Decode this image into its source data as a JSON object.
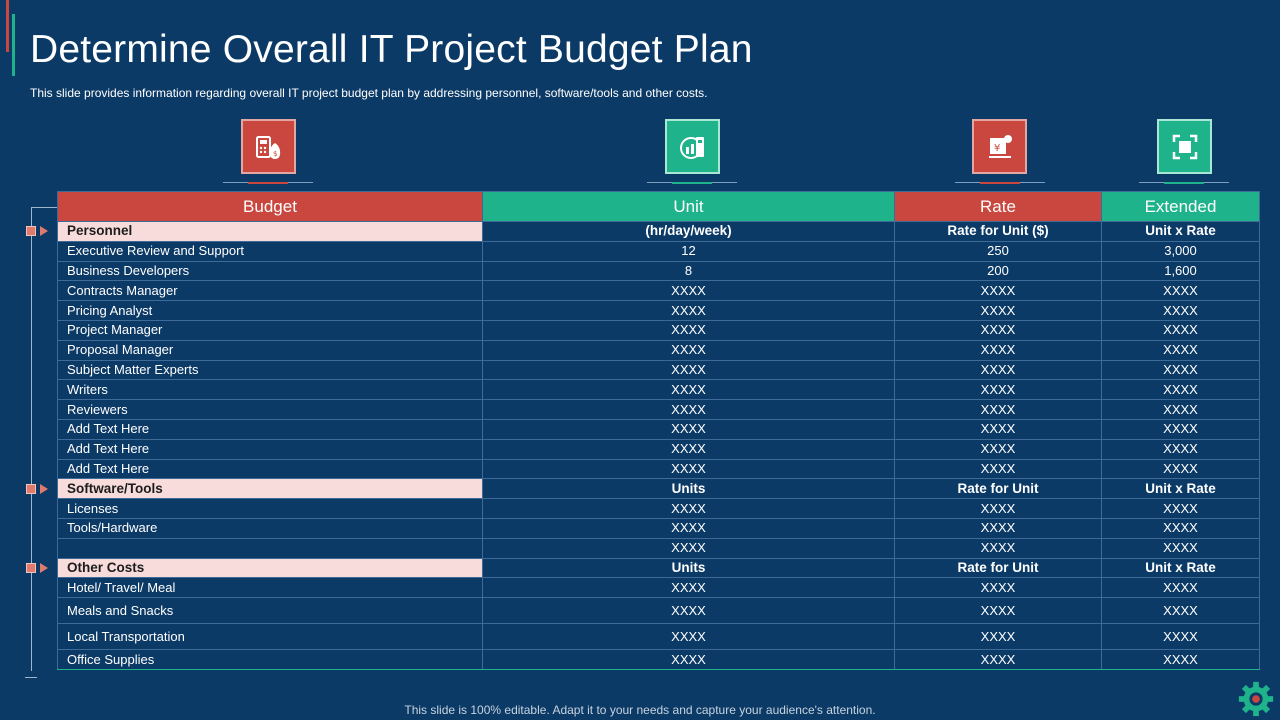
{
  "title": "Determine Overall IT Project Budget Plan",
  "subtitle": "This slide provides information regarding overall IT project budget plan by addressing personnel, software/tools and other costs.",
  "icons": [
    {
      "name": "budget-calculator-icon"
    },
    {
      "name": "growth-chart-icon"
    },
    {
      "name": "rate-price-tag-icon"
    },
    {
      "name": "expand-frame-icon"
    }
  ],
  "table": {
    "headers": [
      "Budget",
      "Unit",
      "Rate",
      "Extended"
    ],
    "sections": [
      {
        "title": "Personnel",
        "unit_header": "(hr/day/week)",
        "rate_header": "Rate for Unit ($)",
        "extended_header": "Unit x Rate",
        "rows": [
          [
            "Executive Review  and Support",
            "12",
            "250",
            "3,000"
          ],
          [
            "Business Developers",
            "8",
            "200",
            "1,600"
          ],
          [
            "Contracts Manager",
            "XXXX",
            "XXXX",
            "XXXX"
          ],
          [
            "Pricing Analyst",
            "XXXX",
            "XXXX",
            "XXXX"
          ],
          [
            "Project Manager",
            "XXXX",
            "XXXX",
            "XXXX"
          ],
          [
            "Proposal Manager",
            "XXXX",
            "XXXX",
            "XXXX"
          ],
          [
            "Subject Matter Experts",
            "XXXX",
            "XXXX",
            "XXXX"
          ],
          [
            "Writers",
            "XXXX",
            "XXXX",
            "XXXX"
          ],
          [
            "Reviewers",
            "XXXX",
            "XXXX",
            "XXXX"
          ],
          [
            "Add Text Here",
            "XXXX",
            "XXXX",
            "XXXX"
          ],
          [
            "Add Text Here",
            "XXXX",
            "XXXX",
            "XXXX"
          ],
          [
            "Add Text Here",
            "XXXX",
            "XXXX",
            "XXXX"
          ]
        ]
      },
      {
        "title": "Software/Tools",
        "unit_header": "Units",
        "rate_header": "Rate for Unit",
        "extended_header": "Unit x Rate",
        "rows": [
          [
            "Licenses",
            "XXXX",
            "XXXX",
            "XXXX"
          ],
          [
            "Tools/Hardware",
            "XXXX",
            "XXXX",
            "XXXX"
          ],
          [
            "",
            "XXXX",
            "XXXX",
            "XXXX"
          ]
        ]
      },
      {
        "title": "Other Costs",
        "unit_header": "Units",
        "rate_header": "Rate for Unit",
        "extended_header": "Unit x Rate",
        "rows": [
          [
            "Hotel/ Travel/  Meal",
            "XXXX",
            "XXXX",
            "XXXX"
          ],
          [
            "Meals and Snacks",
            "XXXX",
            "XXXX",
            "XXXX"
          ],
          [
            "Local Transportation",
            "XXXX",
            "XXXX",
            "XXXX"
          ],
          [
            "Office Supplies",
            "XXXX",
            "XXXX",
            "XXXX"
          ]
        ]
      }
    ]
  },
  "footer": "This slide is 100% editable. Adapt it to your needs and capture your audience's attention.",
  "colors": {
    "background": "#0c3a66",
    "red": "#c9473e",
    "teal": "#1fb38c",
    "section_fill": "#f7dcdb"
  }
}
